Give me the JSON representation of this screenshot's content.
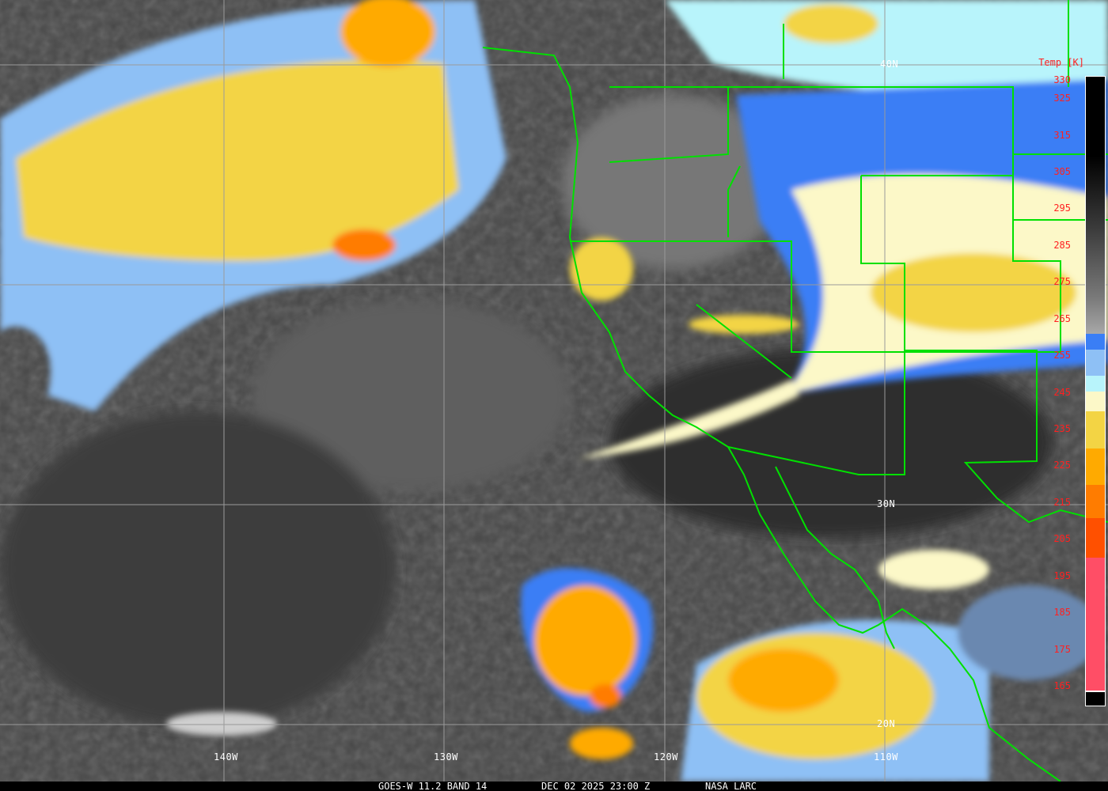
{
  "satellite_image": {
    "footer": {
      "instrument": "GOES-W 11.2 BAND 14",
      "datetime": "DEC 02 2025 23:00 Z",
      "credit": "NASA LARC"
    },
    "latitude_labels": [
      "40N",
      "30N",
      "20N"
    ],
    "longitude_labels": [
      "140W",
      "130W",
      "120W",
      "110W"
    ],
    "colorbar": {
      "title": "Temp [K]",
      "ticks": [
        "330",
        "325",
        "315",
        "305",
        "295",
        "285",
        "275",
        "265",
        "255",
        "245",
        "235",
        "225",
        "215",
        "205",
        "195",
        "185",
        "175",
        "165"
      ],
      "colors": {
        "warm_top": "#000000",
        "gray_mid": "#808080",
        "blue": "#3a7ef5",
        "light_blue": "#8ec0f5",
        "cyan": "#b8f4fb",
        "cream": "#fcf8c8",
        "yellow": "#f3d444",
        "orange": "#ffaa00",
        "dark_orange": "#ff7c00",
        "red_orange": "#ff5000",
        "pink": "#ff4e66"
      }
    },
    "boundary_color": "#00e000",
    "grid_color": "#9a9a9a"
  }
}
